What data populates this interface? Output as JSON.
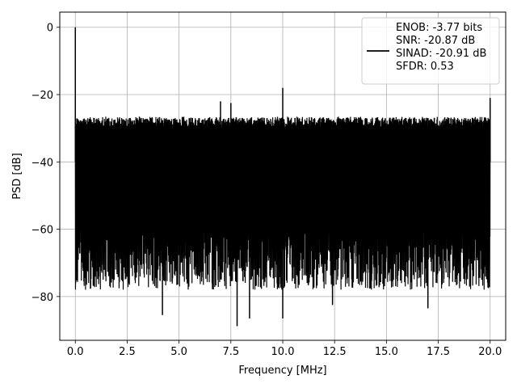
{
  "chart_data": {
    "type": "line",
    "xlabel": "Frequency [MHz]",
    "ylabel": "PSD [dB]",
    "xlim": [
      -0.75,
      20.75
    ],
    "ylim": [
      -93,
      4.5
    ],
    "xticks": [
      0.0,
      2.5,
      5.0,
      7.5,
      10.0,
      12.5,
      15.0,
      17.5,
      20.0
    ],
    "xtick_labels": [
      "0.0",
      "2.5",
      "5.0",
      "7.5",
      "10.0",
      "12.5",
      "15.0",
      "17.5",
      "20.0"
    ],
    "yticks": [
      0,
      -20,
      -40,
      -60,
      -80
    ],
    "ytick_labels": [
      "0",
      "−20",
      "−40",
      "−60",
      "−80"
    ],
    "grid": true,
    "legend_position": "top-right",
    "series": [
      {
        "name": "ENOB: -3.77 bits\nSNR: -20.87 dB\nSINAD: -20.91 dB\nSFDR: 0.53",
        "color": "#000000",
        "x_range": [
          0.0,
          20.0
        ],
        "noise_floor_db": -27,
        "noise_min_db": -80,
        "peaks": [
          {
            "x": 0.0,
            "y": 0
          },
          {
            "x": 10.0,
            "y": -18
          },
          {
            "x": 20.0,
            "y": -21
          },
          {
            "x": 7.0,
            "y": -22
          },
          {
            "x": 7.5,
            "y": -22.5
          }
        ],
        "dips": [
          {
            "x": 4.2,
            "y": -85.5
          },
          {
            "x": 7.8,
            "y": -88.8
          },
          {
            "x": 8.4,
            "y": -86.5
          },
          {
            "x": 10.0,
            "y": -86.5
          },
          {
            "x": 12.4,
            "y": -82.5
          },
          {
            "x": 17.0,
            "y": -83.5
          }
        ]
      }
    ]
  }
}
